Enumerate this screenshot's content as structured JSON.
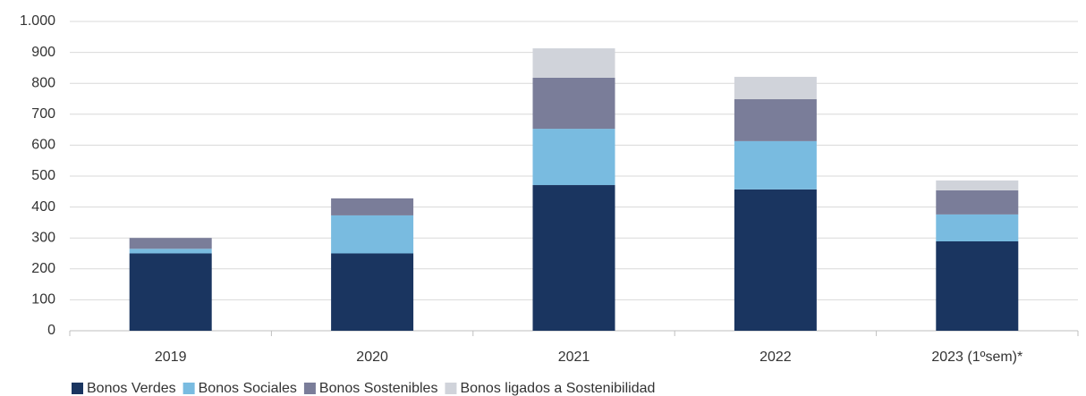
{
  "chart_data": {
    "type": "stacked_bar",
    "categories": [
      "2019",
      "2020",
      "2021",
      "2022",
      "2023 (1ºsem)*"
    ],
    "series": [
      {
        "name": "Bonos Verdes",
        "color": "#1a3560",
        "values": [
          250,
          250,
          471,
          457,
          289
        ]
      },
      {
        "name": "Bonos Sociales",
        "color": "#79bbe0",
        "values": [
          15,
          123,
          182,
          156,
          87
        ]
      },
      {
        "name": "Bonos Sostenibles",
        "color": "#7a7d99",
        "values": [
          35,
          55,
          165,
          136,
          78
        ]
      },
      {
        "name": "Bonos ligados a Sostenibilidad",
        "color": "#d0d3da",
        "values": [
          0,
          0,
          95,
          72,
          32
        ]
      }
    ],
    "ylim": [
      0,
      1000
    ],
    "yticks": [
      0,
      100,
      200,
      300,
      400,
      500,
      600,
      700,
      800,
      900,
      {
        "value": 1000,
        "label": "1.000"
      }
    ],
    "grid": true,
    "legend": "bottom-left"
  }
}
